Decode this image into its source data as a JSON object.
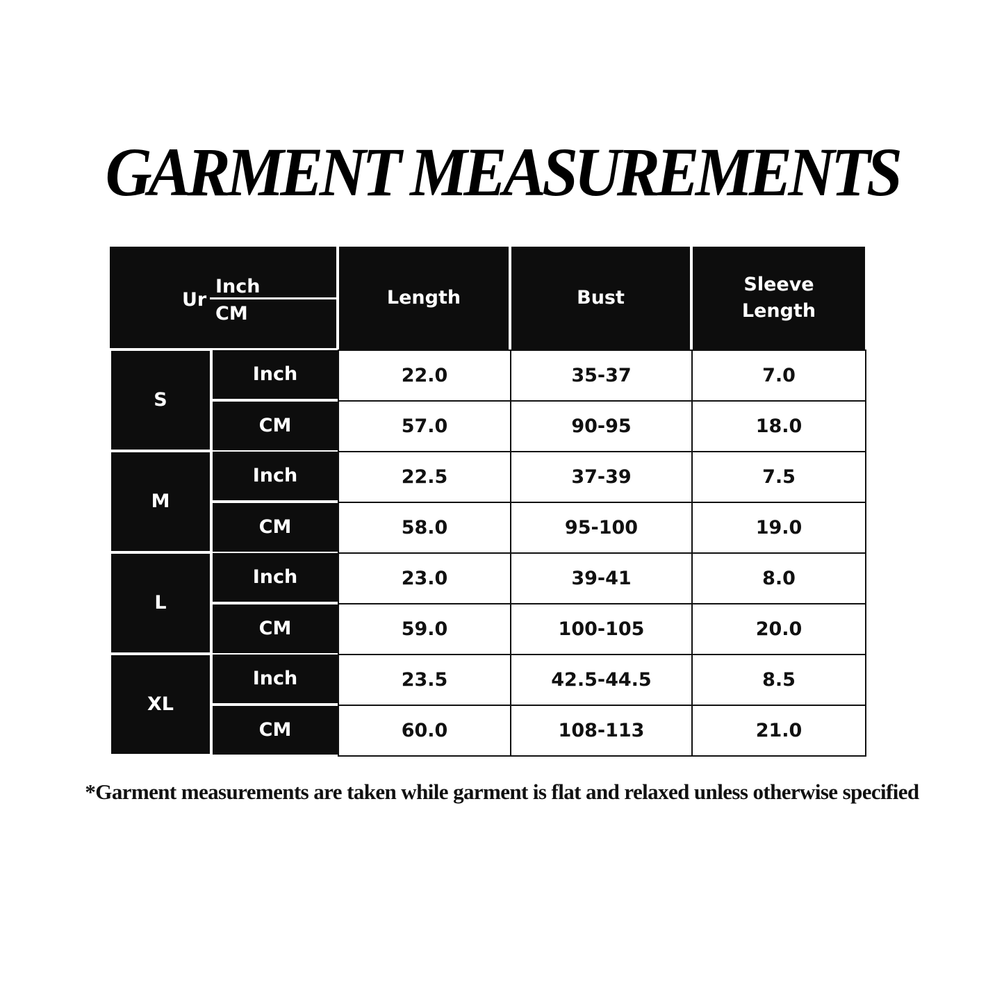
{
  "title": "GARMENT MEASUREMENTS",
  "table": {
    "corner": {
      "label": "Ur",
      "unit_top": "Inch",
      "unit_bottom": "CM"
    },
    "headers": [
      "Length",
      "Bust",
      "Sleeve Length"
    ],
    "rows": [
      {
        "size": "S",
        "units": [
          {
            "unit": "Inch",
            "values": [
              "22.0",
              "35-37",
              "7.0"
            ]
          },
          {
            "unit": "CM",
            "values": [
              "57.0",
              "90-95",
              "18.0"
            ]
          }
        ]
      },
      {
        "size": "M",
        "units": [
          {
            "unit": "Inch",
            "values": [
              "22.5",
              "37-39",
              "7.5"
            ]
          },
          {
            "unit": "CM",
            "values": [
              "58.0",
              "95-100",
              "19.0"
            ]
          }
        ]
      },
      {
        "size": "L",
        "units": [
          {
            "unit": "Inch",
            "values": [
              "23.0",
              "39-41",
              "8.0"
            ]
          },
          {
            "unit": "CM",
            "values": [
              "59.0",
              "100-105",
              "20.0"
            ]
          }
        ]
      },
      {
        "size": "XL",
        "units": [
          {
            "unit": "Inch",
            "values": [
              "23.5",
              "42.5-44.5",
              "8.5"
            ]
          },
          {
            "unit": "CM",
            "values": [
              "60.0",
              "108-113",
              "21.0"
            ]
          }
        ]
      }
    ]
  },
  "footnote": "*Garment measurements are taken while garment is flat and relaxed unless otherwise specified"
}
